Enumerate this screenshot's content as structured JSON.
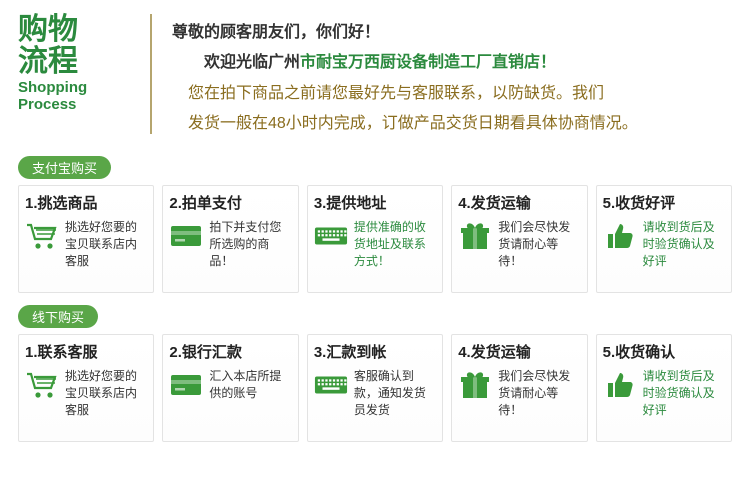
{
  "colors": {
    "accent": "#2b8a3e",
    "brown": "#8a6d1f",
    "text": "#333333",
    "rule": "#b5a56e",
    "badge": "#5aa648",
    "card_border": "#e3e3e3",
    "icon": "#3a9a3a"
  },
  "header": {
    "title_cn": "购物\n流程",
    "title_en": "Shopping\nProcess",
    "greeting": "尊敬的顾客朋友们，你们好！",
    "line2a": "欢迎光临广州",
    "line2b": "市耐宝万西厨设备制造工厂直销店！",
    "line3": "您在拍下商品之前请您最好先与客服联系，以防缺货。我们",
    "line4": "发货一般在48小时内完成，订做产品交货日期看具体协商情况。"
  },
  "sections": [
    {
      "badge": "支付宝购买",
      "steps": [
        {
          "num": "1",
          "title": "挑选商品",
          "icon": "cart",
          "desc": "挑选好您要的宝贝联系店内客服",
          "green": false
        },
        {
          "num": "2",
          "title": "拍单支付",
          "icon": "card",
          "desc": "拍下并支付您所选购的商品！",
          "green": false
        },
        {
          "num": "3",
          "title": "提供地址",
          "icon": "keyboard",
          "desc": "提供准确的收货地址及联系方式！",
          "green": true
        },
        {
          "num": "4",
          "title": "发货运输",
          "icon": "gift",
          "desc": "我们会尽快发货请耐心等待！",
          "green": false
        },
        {
          "num": "5",
          "title": "收货好评",
          "icon": "thumb",
          "desc": "请收到货后及时验货确认及好评",
          "green": true
        }
      ]
    },
    {
      "badge": "线下购买",
      "steps": [
        {
          "num": "1",
          "title": "联系客服",
          "icon": "cart",
          "desc": "挑选好您要的宝贝联系店内客服",
          "green": false
        },
        {
          "num": "2",
          "title": "银行汇款",
          "icon": "card",
          "desc": "汇入本店所提供的账号",
          "green": false
        },
        {
          "num": "3",
          "title": "汇款到帐",
          "icon": "keyboard",
          "desc": "客服确认到款，通知发货员发货",
          "green": false
        },
        {
          "num": "4",
          "title": "发货运输",
          "icon": "gift",
          "desc": "我们会尽快发货请耐心等待！",
          "green": false
        },
        {
          "num": "5",
          "title": "收货确认",
          "icon": "thumb",
          "desc": "请收到货后及时验货确认及好评",
          "green": true
        }
      ]
    }
  ]
}
